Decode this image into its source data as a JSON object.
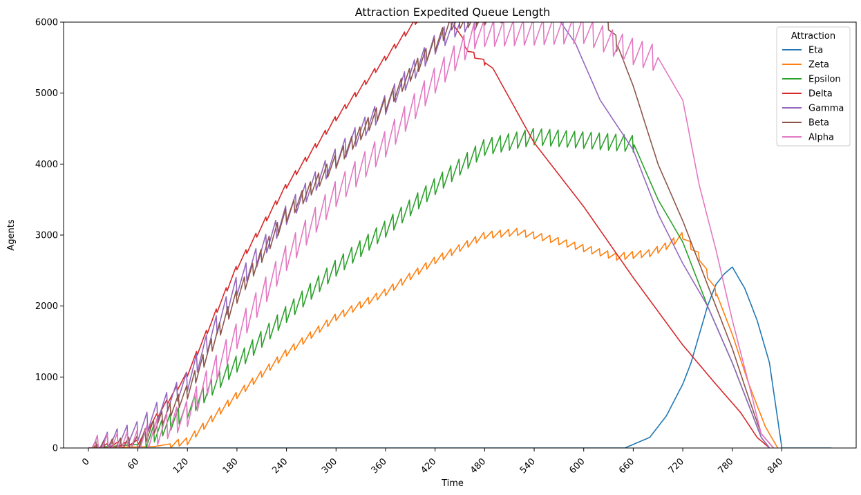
{
  "chart_data": {
    "type": "line",
    "title": "Attraction Expedited Queue Length",
    "xlabel": "Time",
    "ylabel": "Agents",
    "xlim": [
      -30,
      930
    ],
    "ylim": [
      0,
      6000
    ],
    "xticks": [
      0,
      60,
      120,
      180,
      240,
      300,
      360,
      420,
      480,
      540,
      600,
      660,
      720,
      780,
      840
    ],
    "yticks": [
      0,
      1000,
      2000,
      3000,
      4000,
      5000,
      6000
    ],
    "grid": false,
    "legend": {
      "title": "Attraction",
      "placement": "top-right"
    },
    "series": [
      {
        "name": "Eta",
        "color": "#1f77b4",
        "sawtooth": {
          "amp": 320,
          "period": 10,
          "start": 140,
          "end": 650,
          "min": 0
        },
        "x": [
          0,
          140,
          650,
          680,
          700,
          720,
          730,
          740,
          750,
          760,
          770,
          780,
          795,
          810,
          825,
          840,
          900
        ],
        "y": [
          0,
          0,
          0,
          150,
          450,
          900,
          1200,
          1600,
          2000,
          2300,
          2450,
          2550,
          2250,
          1800,
          1200,
          0,
          0
        ]
      },
      {
        "name": "Zeta",
        "color": "#ff7f0e",
        "sawtooth": {
          "amp": 110,
          "period": 10,
          "start": 100,
          "end": 760,
          "min": 0
        },
        "x": [
          0,
          80,
          120,
          180,
          240,
          300,
          360,
          420,
          480,
          520,
          560,
          600,
          640,
          680,
          700,
          720,
          740,
          760,
          780,
          800,
          820,
          835
        ],
        "y": [
          0,
          20,
          100,
          750,
          1350,
          1850,
          2200,
          2650,
          3000,
          3050,
          2950,
          2820,
          2700,
          2750,
          2850,
          3000,
          2700,
          2200,
          1600,
          900,
          300,
          0
        ]
      },
      {
        "name": "Epsilon",
        "color": "#2ca02c",
        "sawtooth": {
          "amp": 260,
          "period": 10,
          "start": 60,
          "end": 660,
          "min": 0
        },
        "x": [
          0,
          60,
          120,
          180,
          240,
          300,
          360,
          420,
          480,
          540,
          600,
          660,
          690,
          720,
          750,
          780,
          800,
          815,
          825
        ],
        "y": [
          0,
          50,
          550,
          1200,
          1900,
          2550,
          3100,
          3700,
          4250,
          4400,
          4350,
          4300,
          3500,
          2900,
          2000,
          1200,
          600,
          150,
          0
        ]
      },
      {
        "name": "Delta",
        "color": "#d62728",
        "sawtooth": {
          "amp": 80,
          "period": 12,
          "start": 0,
          "end": 480,
          "min": 0
        },
        "x": [
          0,
          60,
          120,
          180,
          240,
          300,
          360,
          395,
          430,
          460,
          490,
          540,
          600,
          660,
          720,
          760,
          790,
          810,
          825
        ],
        "y": [
          0,
          80,
          1050,
          2550,
          3700,
          4650,
          5500,
          6000,
          6300,
          5600,
          5350,
          4300,
          3400,
          2400,
          1450,
          900,
          500,
          150,
          0
        ]
      },
      {
        "name": "Gamma",
        "color": "#9467bd",
        "sawtooth": {
          "amp": 300,
          "period": 12,
          "start": 0,
          "end": 470,
          "min": 0
        },
        "x": [
          0,
          60,
          120,
          180,
          240,
          300,
          360,
          420,
          450,
          560,
          590,
          620,
          660,
          690,
          720,
          750,
          780,
          800,
          815,
          825
        ],
        "y": [
          0,
          250,
          950,
          2300,
          3300,
          4100,
          4850,
          5700,
          6000,
          6200,
          5700,
          4900,
          4200,
          3300,
          2600,
          2000,
          1200,
          600,
          150,
          0
        ]
      },
      {
        "name": "Beta",
        "color": "#8c564b",
        "sawtooth": {
          "amp": 220,
          "period": 10,
          "start": 0,
          "end": 640,
          "min": 0
        },
        "x": [
          0,
          60,
          120,
          180,
          240,
          300,
          360,
          420,
          440,
          620,
          660,
          690,
          720,
          750,
          780,
          800,
          815,
          830
        ],
        "y": [
          0,
          80,
          800,
          2150,
          3300,
          4050,
          4850,
          5700,
          6000,
          6300,
          5100,
          4000,
          3200,
          2300,
          1400,
          700,
          200,
          0
        ]
      },
      {
        "name": "Alpha",
        "color": "#e377c2",
        "sawtooth": {
          "amp": 400,
          "period": 12,
          "start": 0,
          "end": 690,
          "min": 0
        },
        "x": [
          0,
          60,
          120,
          180,
          240,
          300,
          360,
          420,
          470,
          600,
          660,
          690,
          720,
          740,
          760,
          780,
          800,
          815,
          830
        ],
        "y": [
          0,
          80,
          500,
          1600,
          2700,
          3600,
          4300,
          5200,
          5850,
          5900,
          5600,
          5500,
          4900,
          3700,
          2800,
          1800,
          900,
          200,
          0
        ]
      }
    ]
  }
}
